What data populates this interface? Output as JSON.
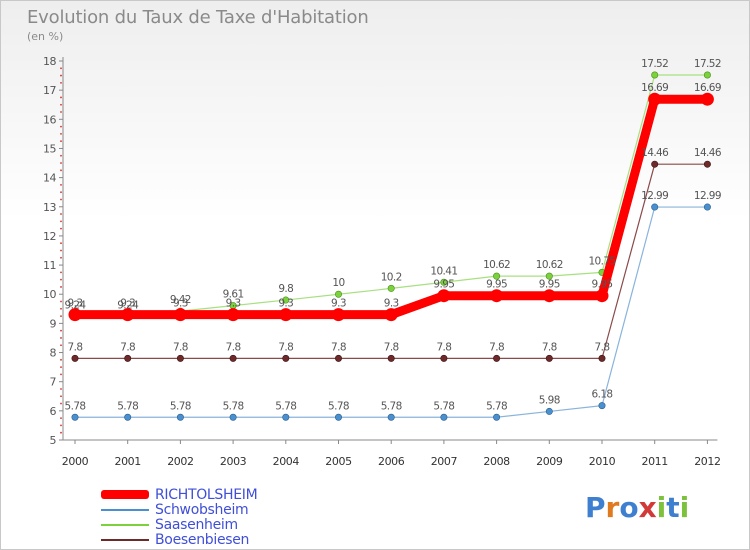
{
  "title": "Evolution du Taux de Taxe d'Habitation",
  "unit_label": "(en %)",
  "logo": "Proxiti",
  "chart_data": {
    "type": "line",
    "title": "Evolution du Taux de Taxe d'Habitation",
    "ylabel": "(en %)",
    "xlabel": "",
    "categories": [
      "2000",
      "2001",
      "2002",
      "2003",
      "2004",
      "2005",
      "2006",
      "2007",
      "2008",
      "2009",
      "2010",
      "2011",
      "2012"
    ],
    "ylim": [
      5,
      18
    ],
    "yticks": [
      5,
      6,
      7,
      8,
      9,
      10,
      11,
      12,
      13,
      14,
      15,
      16,
      17,
      18
    ],
    "grid": false,
    "legend_position": "bottom-left",
    "series": [
      {
        "name": "RICHTOLSHEIM",
        "color": "#ff0000",
        "values": [
          9.3,
          9.3,
          9.3,
          9.3,
          9.3,
          9.3,
          9.3,
          9.95,
          9.95,
          9.95,
          9.95,
          16.69,
          16.69
        ],
        "labels": [
          "9.3",
          "9.3",
          "9.3",
          "9.3",
          "9.3",
          "9.3",
          "9.3",
          "9.95",
          "9.95",
          "9.95",
          "9.95",
          "16.69",
          "16.69"
        ]
      },
      {
        "name": "Schwobsheim",
        "color": "#4a90d0",
        "values": [
          5.78,
          5.78,
          5.78,
          5.78,
          5.78,
          5.78,
          5.78,
          5.78,
          5.78,
          5.98,
          6.18,
          12.99,
          12.99
        ],
        "labels": [
          "5.78",
          "5.78",
          "5.78",
          "5.78",
          "5.78",
          "5.78",
          "5.78",
          "5.78",
          "5.78",
          "5.98",
          "6.18",
          "12.99",
          "12.99"
        ]
      },
      {
        "name": "Saasenheim",
        "color": "#7cd23c",
        "values": [
          9.24,
          9.24,
          9.42,
          9.61,
          9.8,
          10,
          10.2,
          10.41,
          10.62,
          10.62,
          10.75,
          17.52,
          17.52
        ],
        "labels": [
          "9.24",
          "9.24",
          "9.42",
          "9.61",
          "9.8",
          "10",
          "10.2",
          "10.41",
          "10.62",
          "10.62",
          "10.75",
          "17.52",
          "17.52"
        ]
      },
      {
        "name": "Boesenbiesen",
        "color": "#6e2a2a",
        "values": [
          7.8,
          7.8,
          7.8,
          7.8,
          7.8,
          7.8,
          7.8,
          7.8,
          7.8,
          7.8,
          7.8,
          14.46,
          14.46
        ],
        "labels": [
          "7.8",
          "7.8",
          "7.8",
          "7.8",
          "7.8",
          "7.8",
          "7.8",
          "7.8",
          "7.8",
          "7.8",
          "7.8",
          "14.46",
          "14.46"
        ]
      }
    ]
  }
}
